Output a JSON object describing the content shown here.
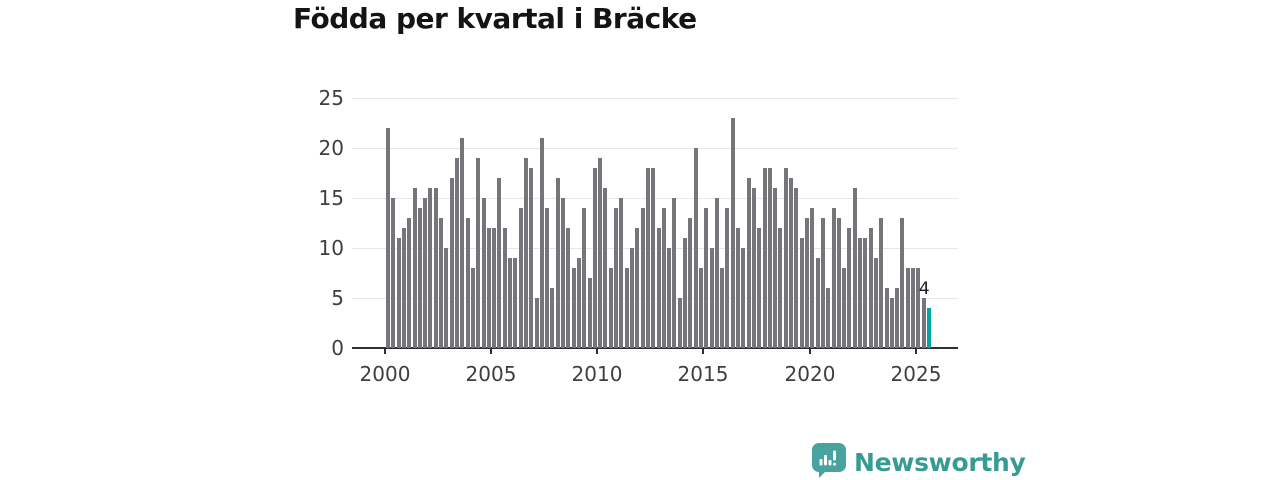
{
  "title": "Födda per kvartal i Bräcke",
  "chart_data": {
    "type": "bar",
    "title": "Födda per kvartal i Bräcke",
    "xlabel": "",
    "ylabel": "",
    "ylim": [
      0,
      25
    ],
    "grid": "horizontal",
    "y_tick_labels": [
      "25",
      "20",
      "15",
      "10",
      "5",
      "0"
    ],
    "x_tick_labels": [
      "2000",
      "2005",
      "2010",
      "2015",
      "2020",
      "2025"
    ],
    "bar_color": "#76767a",
    "highlight_color": "#00a79f",
    "last_value_label": "4",
    "frequency": "quarterly",
    "series": [
      {
        "year": 2000,
        "values": [
          22,
          15,
          11,
          12
        ]
      },
      {
        "year": 2001,
        "values": [
          13,
          16,
          14,
          15
        ]
      },
      {
        "year": 2002,
        "values": [
          16,
          16,
          13,
          10
        ]
      },
      {
        "year": 2003,
        "values": [
          17,
          19,
          21,
          13
        ]
      },
      {
        "year": 2004,
        "values": [
          8,
          19,
          15,
          12
        ]
      },
      {
        "year": 2005,
        "values": [
          12,
          17,
          12,
          9
        ]
      },
      {
        "year": 2006,
        "values": [
          9,
          14,
          19,
          18
        ]
      },
      {
        "year": 2007,
        "values": [
          5,
          21,
          14,
          6
        ]
      },
      {
        "year": 2008,
        "values": [
          17,
          15,
          12,
          8
        ]
      },
      {
        "year": 2009,
        "values": [
          9,
          14,
          7,
          18
        ]
      },
      {
        "year": 2010,
        "values": [
          19,
          16,
          8,
          14
        ]
      },
      {
        "year": 2011,
        "values": [
          15,
          8,
          10,
          12
        ]
      },
      {
        "year": 2012,
        "values": [
          14,
          18,
          18,
          12
        ]
      },
      {
        "year": 2013,
        "values": [
          14,
          10,
          15,
          5
        ]
      },
      {
        "year": 2014,
        "values": [
          11,
          13,
          20,
          8
        ]
      },
      {
        "year": 2015,
        "values": [
          14,
          10,
          15,
          8
        ]
      },
      {
        "year": 2016,
        "values": [
          14,
          23,
          12,
          10
        ]
      },
      {
        "year": 2017,
        "values": [
          17,
          16,
          12,
          18
        ]
      },
      {
        "year": 2018,
        "values": [
          18,
          16,
          12,
          18
        ]
      },
      {
        "year": 2019,
        "values": [
          17,
          16,
          11,
          13
        ]
      },
      {
        "year": 2020,
        "values": [
          14,
          9,
          13,
          6
        ]
      },
      {
        "year": 2021,
        "values": [
          14,
          13,
          8,
          12
        ]
      },
      {
        "year": 2022,
        "values": [
          16,
          11,
          11,
          12
        ]
      },
      {
        "year": 2023,
        "values": [
          9,
          13,
          6,
          5
        ]
      },
      {
        "year": 2024,
        "values": [
          6,
          13,
          8,
          8
        ]
      },
      {
        "year": 2025,
        "values": [
          8,
          5,
          4
        ]
      }
    ]
  },
  "footer": {
    "brand": "Newsworthy",
    "brand_color": "#379b95",
    "logo_icon": "speech-bubble-bar-chart-icon"
  }
}
